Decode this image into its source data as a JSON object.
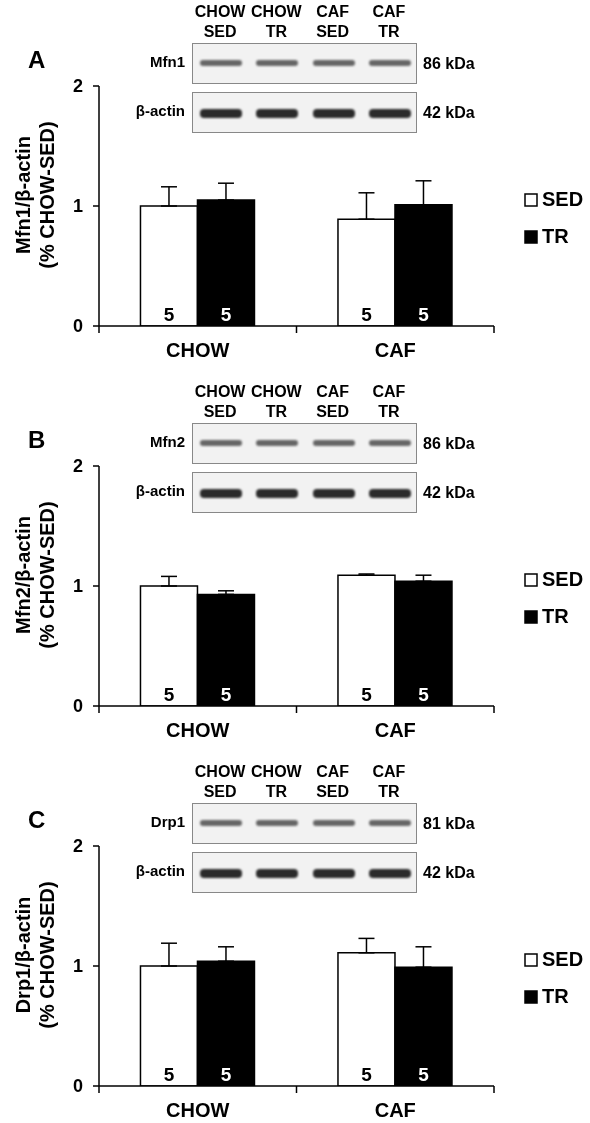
{
  "chart_data": [
    {
      "type": "bar",
      "title": "A",
      "ylabel": "Mfn1/β-actin\n(% CHOW-SED)",
      "categories": [
        "CHOW",
        "CAF"
      ],
      "series": [
        {
          "name": "SED",
          "color": "#ffffff",
          "values": [
            1.0,
            0.89
          ],
          "errors": [
            [
              1.0,
              1.16
            ],
            [
              0.89,
              1.11
            ]
          ]
        },
        {
          "name": "TR",
          "color": "#000000",
          "values": [
            1.05,
            1.01
          ],
          "errors": [
            [
              1.05,
              1.19
            ],
            [
              1.01,
              1.21
            ]
          ]
        }
      ],
      "ylim": [
        0,
        2
      ],
      "yticks": [
        0,
        1,
        2
      ],
      "legend": "right",
      "annotations": [
        "CHOW\nSED",
        "CHOW\nTR",
        "CAF\nSED",
        "CAF\nTR",
        "Mfn1",
        "86 kDa",
        "β-actin",
        "42 kDa",
        {
          "text": "5",
          "x": "CHOW",
          "y": 0.1
        },
        {
          "text": "5",
          "x": "CHOW",
          "y": 0.1
        },
        {
          "text": "5",
          "x": "CAF",
          "y": 0.1
        },
        {
          "text": "5",
          "x": "CAF",
          "y": 0.1
        }
      ]
    },
    {
      "type": "bar",
      "title": "B",
      "ylabel": "Mfn2/β-actin\n(% CHOW-SED)",
      "categories": [
        "CHOW",
        "CAF"
      ],
      "series": [
        {
          "name": "SED",
          "color": "#ffffff",
          "values": [
            1.0,
            1.09
          ],
          "errors": [
            [
              1.0,
              1.08
            ],
            [
              1.09,
              1.1
            ]
          ]
        },
        {
          "name": "TR",
          "color": "#000000",
          "values": [
            0.93,
            1.04
          ],
          "errors": [
            [
              0.93,
              0.96
            ],
            [
              1.04,
              1.09
            ]
          ]
        }
      ],
      "ylim": [
        0,
        2
      ],
      "yticks": [
        0,
        1,
        2
      ],
      "legend": "right",
      "annotations": [
        "CHOW\nSED",
        "CHOW\nTR",
        "CAF\nSED",
        "CAF\nTR",
        "Mfn2",
        "86 kDa",
        "β-actin",
        "42 kDa",
        {
          "text": "5",
          "x": "CHOW",
          "y": 0.1
        },
        {
          "text": "5",
          "x": "CHOW",
          "y": 0.1
        },
        {
          "text": "5",
          "x": "CAF",
          "y": 0.1
        },
        {
          "text": "5",
          "x": "CAF",
          "y": 0.1
        }
      ]
    },
    {
      "type": "bar",
      "title": "C",
      "ylabel": "Drp1/β-actin\n(% CHOW-SED)",
      "categories": [
        "CHOW",
        "CAF"
      ],
      "series": [
        {
          "name": "SED",
          "color": "#ffffff",
          "values": [
            1.0,
            1.11
          ],
          "errors": [
            [
              1.0,
              1.19
            ],
            [
              1.11,
              1.23
            ]
          ]
        },
        {
          "name": "TR",
          "color": "#000000",
          "values": [
            1.04,
            0.99
          ],
          "errors": [
            [
              1.04,
              1.16
            ],
            [
              0.99,
              1.16
            ]
          ]
        }
      ],
      "ylim": [
        0,
        2
      ],
      "yticks": [
        0,
        1,
        2
      ],
      "legend": "right",
      "annotations": [
        "CHOW\nSED",
        "CHOW\nTR",
        "CAF\nSED",
        "CAF\nTR",
        "Drp1",
        "81 kDa",
        "β-actin",
        "42 kDa",
        {
          "text": "5",
          "x": "CHOW",
          "y": 0.1
        },
        {
          "text": "5",
          "x": "CHOW",
          "y": 0.1
        },
        {
          "text": "5",
          "x": "CAF",
          "y": 0.1
        },
        {
          "text": "5",
          "x": "CAF",
          "y": 0.1
        }
      ]
    }
  ]
}
